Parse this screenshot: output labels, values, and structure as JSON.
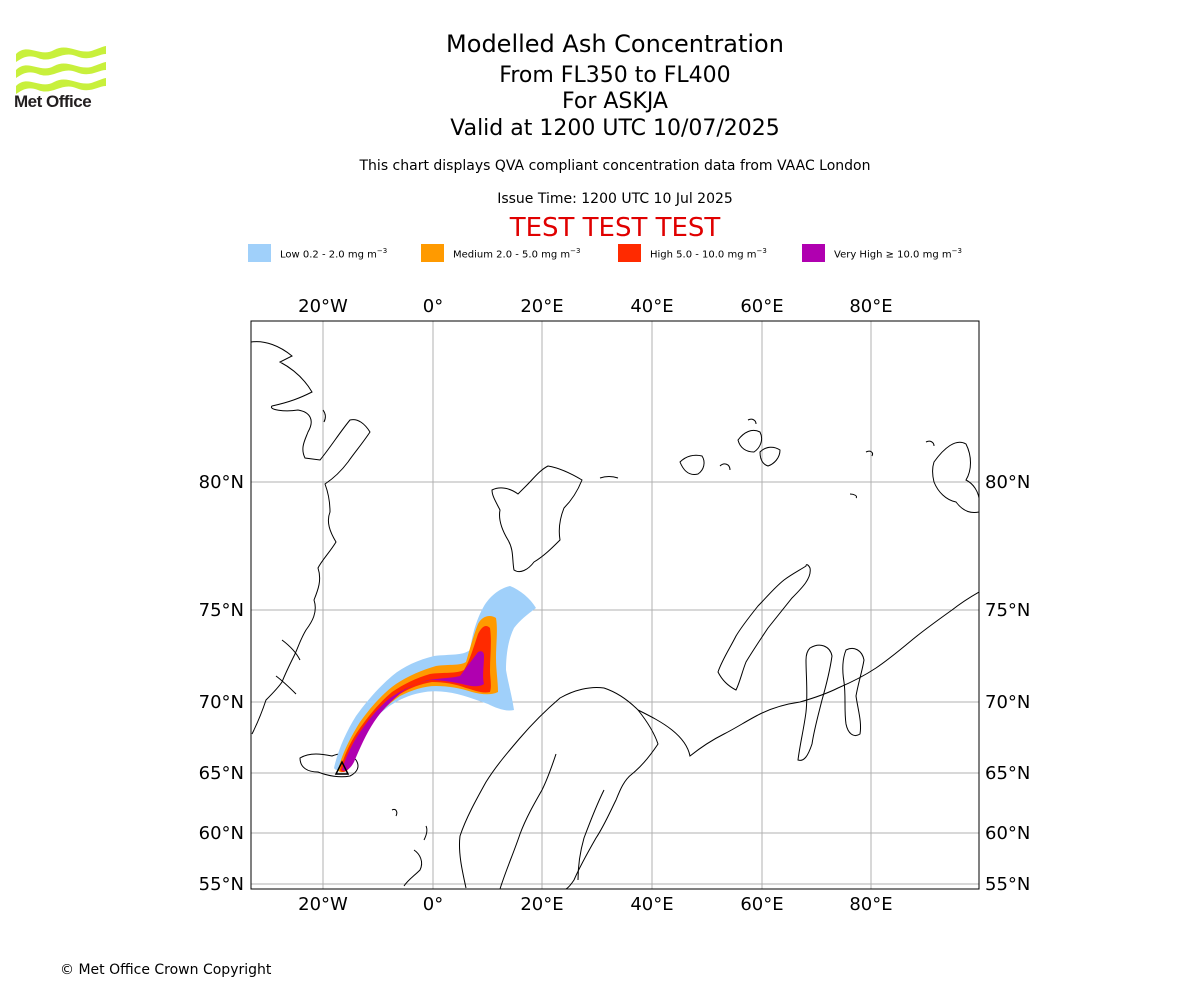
{
  "logo": {
    "text": "Met Office",
    "color": "#c8f03c"
  },
  "title": "Modelled Ash Concentration",
  "subtitle_levels": "From FL350 to FL400",
  "subtitle_volcano": "For ASKJA",
  "subtitle_valid": "Valid at 1200 UTC 10/07/2025",
  "note": "This chart displays QVA compliant concentration data from VAAC London",
  "issue_time": "Issue Time: 1200 UTC 10 Jul 2025",
  "test_banner": "TEST TEST TEST",
  "legend": [
    {
      "label": "Low 0.2 - 2.0 mg m",
      "color": "#a0d0fa"
    },
    {
      "label": "Medium 2.0 - 5.0 mg m",
      "color": "#ff9a00"
    },
    {
      "label": "High 5.0 - 10.0 mg m",
      "color": "#ff2a00"
    },
    {
      "label": "Very High ≥ 10.0 mg m",
      "color": "#b000b0"
    }
  ],
  "legend_unit_exp": "−3",
  "map": {
    "lon_ticks": [
      "20°W",
      "0°",
      "20°E",
      "40°E",
      "60°E",
      "80°E"
    ],
    "lat_ticks": [
      "80°N",
      "75°N",
      "70°N",
      "65°N",
      "60°N",
      "55°N"
    ],
    "gridlines": true,
    "coastline_color": "#000000",
    "gridline_color": "#b0b0b0"
  },
  "copyright": "© Met Office Crown Copyright"
}
